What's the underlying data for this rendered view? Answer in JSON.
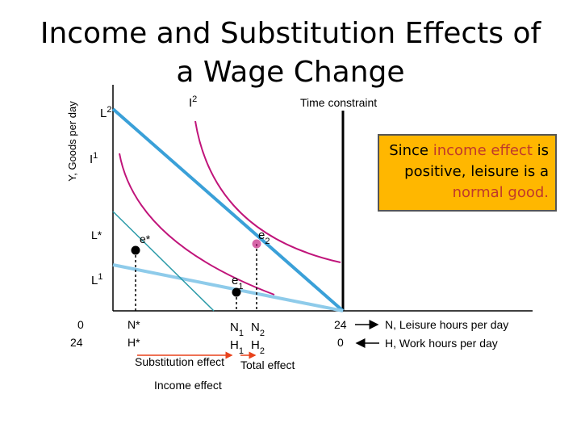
{
  "title": "Income and Substitution Effects of a Wage Change",
  "callout": {
    "part1": "Since ",
    "highlight1": "income effect",
    "part2": " is positive, leisure is a ",
    "highlight2": "normal good.",
    "highlight_color": "#c0392b",
    "background": "#ffb700"
  },
  "chart_data": {
    "type": "line",
    "ylabel": "Y, Goods per day",
    "time_constraint_label": "Time constraint",
    "y_tick_labels": {
      "L2": "L2",
      "I1": "I1",
      "Lstar": "L*",
      "L1": "L1"
    },
    "curve_labels": {
      "I2": "I2"
    },
    "point_labels": {
      "estar": "e*",
      "e2": "e2",
      "e1": "e1"
    },
    "x_row1": [
      "0",
      "N*",
      "N1",
      "N2",
      "24"
    ],
    "x_row2": [
      "24",
      "H*",
      "H1",
      "H2",
      "0"
    ],
    "x_axis_labels": {
      "leisure": "N, Leisure hours per day",
      "work": "H, Work hours per day"
    },
    "effects": {
      "substitution": "Substitution effect",
      "total": "Total effect",
      "income": "Income effect"
    },
    "colors": {
      "budget_new": "#3aa0d8",
      "budget_old": "#8ecbea",
      "compensated": "#2a9aa8",
      "indifference": "#c0147a",
      "effect_arrow": "#e8421b"
    }
  }
}
